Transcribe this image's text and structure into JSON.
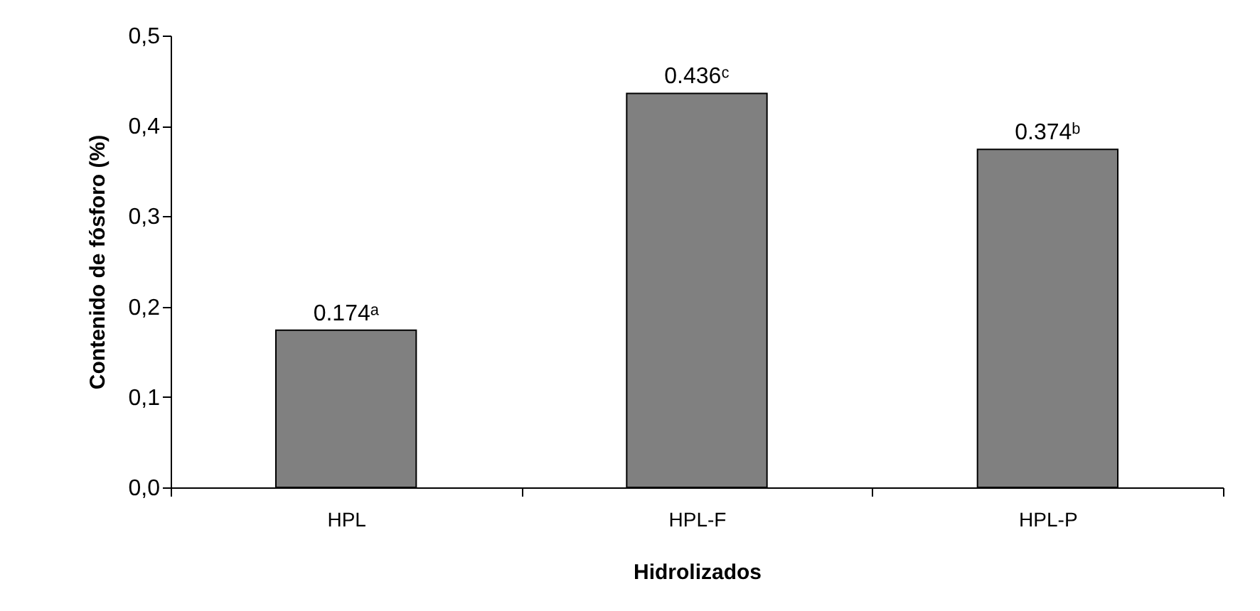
{
  "chart_data": {
    "type": "bar",
    "xlabel": "Hidrolizados",
    "ylabel": "Contenido de fósforo (%)",
    "categories": [
      "HPL",
      "HPL-F",
      "HPL-P"
    ],
    "values": [
      0.174,
      0.436,
      0.374
    ],
    "value_labels": [
      "0.174ᵃ",
      "0.436ᶜ",
      "0.374ᵇ"
    ],
    "color": "#808080",
    "ylim": [
      0,
      0.5
    ],
    "yticks": [
      {
        "value": 0,
        "label": "0,0"
      },
      {
        "value": 0.1,
        "label": "0,1"
      },
      {
        "value": 0.2,
        "label": "0,2"
      },
      {
        "value": 0.3,
        "label": "0,3"
      },
      {
        "value": 0.4,
        "label": "0,4"
      },
      {
        "value": 0.5,
        "label": "0,5"
      }
    ],
    "grid": false
  }
}
